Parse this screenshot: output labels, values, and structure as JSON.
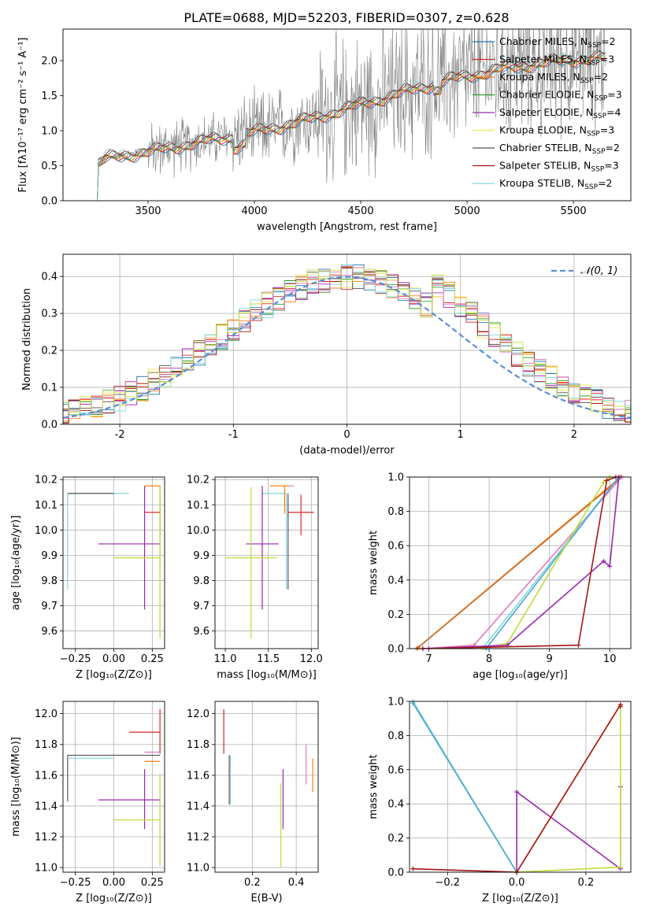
{
  "figure_title": "PLATE=0688, MJD=52203, FIBERID=0307, z=0.628",
  "colors": {
    "chabrier_miles": "#1f77b4",
    "salpeter_miles": "#d62728",
    "kroupa_miles": "#ff7f0e",
    "chabrier_elodie": "#2ca02c",
    "salpeter_elodie": "#9b27b0",
    "kroupa_elodie": "#e8e85a",
    "chabrier_stelib": "#555555",
    "salpeter_stelib": "#a41616",
    "kroupa_stelib": "#7fd4de",
    "pink": "#e377c2",
    "lime": "#bcdd3a",
    "data": "#808080",
    "gaussian": "#5b8ed8"
  },
  "chart_data": [
    {
      "id": "spectrum",
      "type": "line",
      "xlabel": "wavelength [Angstrom, rest frame]",
      "ylabel": "Flux [fλ10⁻¹⁷ erg cm⁻² s⁻¹ A⁻¹]",
      "xlim": [
        3100,
        5770
      ],
      "ylim": [
        0,
        2.45
      ],
      "xticks": [
        3500,
        4000,
        4500,
        5000,
        5500
      ],
      "yticks": [
        0.0,
        0.5,
        1.0,
        1.5,
        2.0
      ],
      "legend_position": "top-right",
      "legend": [
        {
          "label": "Chabrier MILES, N",
          "sub": "SSP",
          "tail": "=2",
          "color": "#1f77b4"
        },
        {
          "label": "Salpeter MILES, N",
          "sub": "SSP",
          "tail": "=3",
          "color": "#d62728"
        },
        {
          "label": "Kroupa MILES, N",
          "sub": "SSP",
          "tail": "=2",
          "color": "#ff7f0e"
        },
        {
          "label": "Chabrier ELODIE, N",
          "sub": "SSP",
          "tail": "=3",
          "color": "#2ca02c"
        },
        {
          "label": "Salpeter ELODIE, N",
          "sub": "SSP",
          "tail": "=4",
          "color": "#9b27b0"
        },
        {
          "label": "Kroupa ELODIE, N",
          "sub": "SSP",
          "tail": "=3",
          "color": "#e8e85a"
        },
        {
          "label": "Chabrier STELIB, N",
          "sub": "SSP",
          "tail": "=2",
          "color": "#555555"
        },
        {
          "label": "Salpeter STELIB, N",
          "sub": "SSP",
          "tail": "=3",
          "color": "#a41616"
        },
        {
          "label": "Kroupa STELIB, N",
          "sub": "SSP",
          "tail": "=2",
          "color": "#7fd4de"
        }
      ],
      "model_continuum_anchors": [
        [
          3250,
          0.0
        ],
        [
          3260,
          0.5
        ],
        [
          3300,
          0.6
        ],
        [
          3400,
          0.66
        ],
        [
          3500,
          0.7
        ],
        [
          3700,
          0.82
        ],
        [
          3900,
          0.92
        ],
        [
          4100,
          1.05
        ],
        [
          4300,
          1.2
        ],
        [
          4500,
          1.38
        ],
        [
          4700,
          1.55
        ],
        [
          4900,
          1.72
        ],
        [
          5100,
          1.85
        ],
        [
          5300,
          1.95
        ],
        [
          5500,
          2.02
        ],
        [
          5650,
          2.05
        ]
      ],
      "data_extent": [
        3260,
        5650
      ]
    },
    {
      "id": "residual_hist",
      "type": "step",
      "xlabel": "(data-model)/error",
      "ylabel": "Normed distribution",
      "xlim": [
        -2.5,
        2.5
      ],
      "ylim": [
        0,
        0.46
      ],
      "xticks": [
        -2,
        -1,
        0,
        1,
        2
      ],
      "yticks": [
        0.0,
        0.1,
        0.2,
        0.3,
        0.4
      ],
      "legend_position": "top-right",
      "gaussian_label": "𝒩(0, 1)",
      "bin_width": 0.1
    },
    {
      "id": "age_vs_Z",
      "type": "errorbar",
      "xlabel": "Z [log₁₀(Z/Z⊙)]",
      "ylabel": "age  [log₁₀(age/yr)]",
      "xlim": [
        -0.33,
        0.33
      ],
      "ylim": [
        9.53,
        10.21
      ],
      "xticks": [
        -0.25,
        0.0,
        0.25
      ],
      "xticklabels": [
        "−0.25",
        "0.00",
        "0.25"
      ],
      "yticks": [
        9.6,
        9.7,
        9.8,
        9.9,
        10.0,
        10.1,
        10.2
      ],
      "points": [
        {
          "x": -0.3,
          "y": 10.145,
          "xerr": [
            0,
            0.4
          ],
          "yerr": [
            0.38,
            0
          ],
          "color": "#7fd4de"
        },
        {
          "x": 0.0,
          "y": 10.145,
          "xerr": [
            0.3,
            0.0
          ],
          "yerr": [
            0,
            0
          ],
          "color": "#555555"
        },
        {
          "x": 0.3,
          "y": 10.175,
          "xerr": [
            0.1,
            0.0
          ],
          "yerr": [
            0.33,
            0
          ],
          "color": "#ff7f0e"
        },
        {
          "x": 0.3,
          "y": 10.07,
          "xerr": [
            0.1,
            0.0
          ],
          "yerr": [
            0.09,
            0.07
          ],
          "color": "#d62728"
        },
        {
          "x": 0.2,
          "y": 9.945,
          "xerr": [
            0.3,
            0.1
          ],
          "yerr": [
            0.26,
            0.23
          ],
          "color": "#9b27b0"
        },
        {
          "x": 0.3,
          "y": 9.89,
          "xerr": [
            0.3,
            0.0
          ],
          "yerr": [
            0.32,
            0.28
          ],
          "color": "#bcdd3a"
        }
      ]
    },
    {
      "id": "age_vs_mass",
      "type": "errorbar",
      "xlabel": "mass [log₁₀(M/M⊙)]",
      "ylabel": "",
      "xlim": [
        10.88,
        12.08
      ],
      "ylim": [
        9.53,
        10.21
      ],
      "xticks": [
        11.0,
        11.5,
        12.0
      ],
      "xticklabels": [
        "11.0",
        "11.5",
        "12.0"
      ],
      "yticks": [
        9.6,
        9.7,
        9.8,
        9.9,
        10.0,
        10.1,
        10.2
      ],
      "points": [
        {
          "x": 11.71,
          "y": 10.145,
          "xerr": [
            0.29,
            0.0
          ],
          "yerr": [
            0.38,
            0
          ],
          "color": "#7fd4de"
        },
        {
          "x": 11.73,
          "y": 10.145,
          "xerr": [
            0.0,
            0.0
          ],
          "yerr": [
            0.38,
            0
          ],
          "color": "#555555"
        },
        {
          "x": 11.69,
          "y": 10.175,
          "xerr": [
            0.17,
            0.06
          ],
          "yerr": [
            0.11,
            0
          ],
          "color": "#ff7f0e"
        },
        {
          "x": 11.74,
          "y": 10.175,
          "xerr": [
            0.0,
            0.06
          ],
          "yerr": [
            0.0,
            0
          ],
          "color": "#e377c2"
        },
        {
          "x": 11.88,
          "y": 10.07,
          "xerr": [
            0.15,
            0.15
          ],
          "yerr": [
            0.09,
            0.07
          ],
          "color": "#d62728"
        },
        {
          "x": 11.43,
          "y": 9.945,
          "xerr": [
            0.19,
            0.19
          ],
          "yerr": [
            0.26,
            0.23
          ],
          "color": "#9b27b0"
        },
        {
          "x": 11.3,
          "y": 9.89,
          "xerr": [
            0.3,
            0.3
          ],
          "yerr": [
            0.32,
            0.28
          ],
          "color": "#bcdd3a"
        }
      ]
    },
    {
      "id": "cum_weight_vs_age",
      "type": "line",
      "xlabel": "age  [log₁₀(age/yr)]",
      "ylabel": "mass weight",
      "xlim": [
        6.68,
        10.35
      ],
      "ylim": [
        0,
        1.0
      ],
      "xticks": [
        7,
        8,
        9,
        10
      ],
      "yticks": [
        0.0,
        0.2,
        0.4,
        0.6,
        0.8,
        1.0
      ],
      "series": [
        {
          "color": "#ff7f0e",
          "x": [
            6.8,
            10.18
          ],
          "y": [
            0.0,
            1.0
          ]
        },
        {
          "color": "#c96b2a",
          "x": [
            6.82,
            10.2
          ],
          "y": [
            0.005,
            1.0
          ]
        },
        {
          "color": "#e377c2",
          "x": [
            6.9,
            7.75,
            10.2
          ],
          "y": [
            0.0,
            0.02,
            1.0
          ]
        },
        {
          "color": "#7fd4de",
          "x": [
            7.9,
            10.15
          ],
          "y": [
            0.005,
            1.0
          ]
        },
        {
          "color": "#4aa7c8",
          "x": [
            7.95,
            10.15
          ],
          "y": [
            0.0,
            1.0
          ]
        },
        {
          "color": "#bcdd3a",
          "x": [
            7.9,
            8.3,
            9.9,
            10.0
          ],
          "y": [
            0.005,
            0.03,
            0.97,
            1.0
          ]
        },
        {
          "color": "#9b27b0",
          "x": [
            7.0,
            8.3,
            9.9,
            10.0,
            10.15
          ],
          "y": [
            0.0,
            0.02,
            0.51,
            0.48,
            1.0
          ]
        },
        {
          "color": "#a41616",
          "x": [
            6.9,
            9.48,
            9.95,
            10.1
          ],
          "y": [
            0.0,
            0.02,
            0.98,
            1.0
          ]
        }
      ]
    },
    {
      "id": "mass_vs_Z",
      "type": "errorbar",
      "xlabel": "Z [log₁₀(Z/Z⊙)]",
      "ylabel": "mass [log₁₀(M/M⊙)]",
      "xlim": [
        -0.33,
        0.33
      ],
      "ylim": [
        10.97,
        12.08
      ],
      "xticks": [
        -0.25,
        0.0,
        0.25
      ],
      "xticklabels": [
        "−0.25",
        "0.00",
        "0.25"
      ],
      "yticks": [
        11.0,
        11.2,
        11.4,
        11.6,
        11.8,
        12.0
      ],
      "points": [
        {
          "x": -0.3,
          "y": 11.73,
          "xerr": [
            0,
            0.6
          ],
          "yerr": [
            0.3,
            0
          ],
          "color": "#555555"
        },
        {
          "x": -0.3,
          "y": 11.71,
          "xerr": [
            0,
            0.3
          ],
          "yerr": [
            0,
            0
          ],
          "color": "#7fd4de"
        },
        {
          "x": 0.3,
          "y": 11.88,
          "xerr": [
            0.2,
            0.0
          ],
          "yerr": [
            0.14,
            0.15
          ],
          "color": "#d62728"
        },
        {
          "x": 0.3,
          "y": 11.75,
          "xerr": [
            0.1,
            0.0
          ],
          "yerr": [
            0.0,
            0.0
          ],
          "color": "#e377c2"
        },
        {
          "x": 0.3,
          "y": 11.69,
          "xerr": [
            0.1,
            0.0
          ],
          "yerr": [
            0.0,
            0.0
          ],
          "color": "#ff7f0e"
        },
        {
          "x": 0.2,
          "y": 11.44,
          "xerr": [
            0.3,
            0.1
          ],
          "yerr": [
            0.19,
            0.2
          ],
          "color": "#9b27b0"
        },
        {
          "x": 0.3,
          "y": 11.31,
          "xerr": [
            0.3,
            0.0
          ],
          "yerr": [
            0.3,
            0.3
          ],
          "color": "#bcdd3a"
        }
      ]
    },
    {
      "id": "mass_vs_EBV",
      "type": "errorbar",
      "xlabel": "E(B-V)",
      "ylabel": "",
      "xlim": [
        0.03,
        0.5
      ],
      "ylim": [
        10.97,
        12.08
      ],
      "xticks": [
        0.2,
        0.4
      ],
      "xticklabels": [
        "0.2",
        "0.4"
      ],
      "yticks": [
        11.0,
        11.2,
        11.4,
        11.6,
        11.8,
        12.0
      ],
      "points": [
        {
          "x": 0.07,
          "y": 11.88,
          "xerr": [
            0,
            0
          ],
          "yerr": [
            0.14,
            0.15
          ],
          "color": "#d62728"
        },
        {
          "x": 0.095,
          "y": 11.57,
          "xerr": [
            0,
            0
          ],
          "yerr": [
            0.16,
            0.16
          ],
          "color": "#555555"
        },
        {
          "x": 0.1,
          "y": 11.57,
          "xerr": [
            0,
            0
          ],
          "yerr": [
            0.16,
            0.16
          ],
          "color": "#7fd4de"
        },
        {
          "x": 0.33,
          "y": 11.27,
          "xerr": [
            0,
            0
          ],
          "yerr": [
            0.27,
            0.28
          ],
          "color": "#bcdd3a"
        },
        {
          "x": 0.34,
          "y": 11.44,
          "xerr": [
            0,
            0
          ],
          "yerr": [
            0.19,
            0.2
          ],
          "color": "#9b27b0"
        },
        {
          "x": 0.445,
          "y": 11.67,
          "xerr": [
            0,
            0
          ],
          "yerr": [
            0.13,
            0.13
          ],
          "color": "#e377c2"
        },
        {
          "x": 0.475,
          "y": 11.59,
          "xerr": [
            0,
            0
          ],
          "yerr": [
            0.1,
            0.12
          ],
          "color": "#ff7f0e"
        }
      ]
    },
    {
      "id": "cum_weight_vs_Z",
      "type": "line",
      "xlabel": "Z [log₁₀(Z/Z⊙)]",
      "ylabel": "mass weight",
      "xlim": [
        -0.31,
        0.33
      ],
      "ylim": [
        0,
        1.0
      ],
      "xticks": [
        -0.2,
        0.0,
        0.2
      ],
      "xticklabels": [
        "−0.2",
        "0.0",
        "0.2"
      ],
      "yticks": [
        0.0,
        0.2,
        0.4,
        0.6,
        0.8,
        1.0
      ],
      "series": [
        {
          "color": "#7fd4de",
          "x": [
            -0.3,
            0.0
          ],
          "y": [
            1.0,
            0.0
          ]
        },
        {
          "color": "#4aa7c8",
          "x": [
            -0.3,
            0.0
          ],
          "y": [
            0.99,
            0.0
          ]
        },
        {
          "color": "#9b27b0",
          "x": [
            0.0,
            0.0,
            0.3,
            0.3
          ],
          "y": [
            0.0,
            0.47,
            0.02,
            0.5
          ]
        },
        {
          "color": "#bcdd3a",
          "x": [
            0.0,
            0.3,
            0.3
          ],
          "y": [
            0.0,
            0.03,
            0.97
          ]
        },
        {
          "color": "#ff7f0e",
          "x": [
            0.0,
            0.3
          ],
          "y": [
            0.0,
            0.98
          ]
        },
        {
          "color": "#a41616",
          "x": [
            -0.3,
            0.0,
            0.3,
            0.3
          ],
          "y": [
            0.02,
            0.0,
            0.98,
            0.97
          ]
        }
      ]
    }
  ]
}
